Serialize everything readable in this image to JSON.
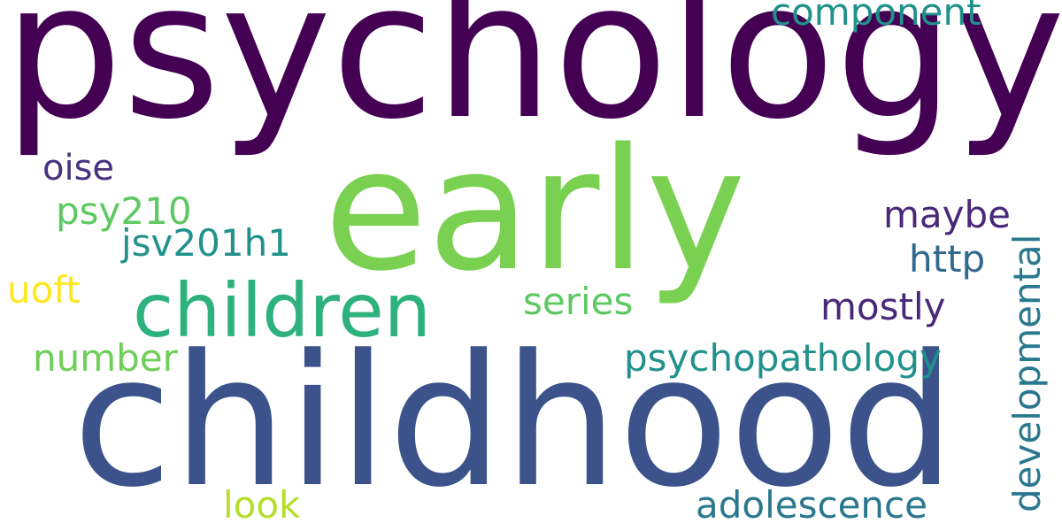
{
  "words": [
    {
      "id": "psychology",
      "text": "psychology",
      "color": "#440154"
    },
    {
      "id": "early",
      "text": "early",
      "color": "#7ad151"
    },
    {
      "id": "childhood",
      "text": "childhood",
      "color": "#3b528b"
    },
    {
      "id": "children",
      "text": "children",
      "color": "#2db27d"
    },
    {
      "id": "component",
      "text": "component",
      "color": "#21918c"
    },
    {
      "id": "oise",
      "text": "oise",
      "color": "#46327e"
    },
    {
      "id": "psy210",
      "text": "psy210",
      "color": "#5ec962"
    },
    {
      "id": "jsv201h1",
      "text": "jsv201h1",
      "color": "#21918c"
    },
    {
      "id": "maybe",
      "text": "maybe",
      "color": "#482878"
    },
    {
      "id": "http",
      "text": "http",
      "color": "#31688e"
    },
    {
      "id": "developmental",
      "text": "developmental",
      "color": "#2a788e"
    },
    {
      "id": "uoft",
      "text": "uoft",
      "color": "#fde725"
    },
    {
      "id": "series",
      "text": "series",
      "color": "#5ec962"
    },
    {
      "id": "mostly",
      "text": "mostly",
      "color": "#482878"
    },
    {
      "id": "number",
      "text": "number",
      "color": "#6ece58"
    },
    {
      "id": "psychopathology",
      "text": "psychopathology",
      "color": "#21918c"
    },
    {
      "id": "look",
      "text": "look",
      "color": "#b5de2b"
    },
    {
      "id": "adolescence",
      "text": "adolescence",
      "color": "#2a788e"
    }
  ]
}
